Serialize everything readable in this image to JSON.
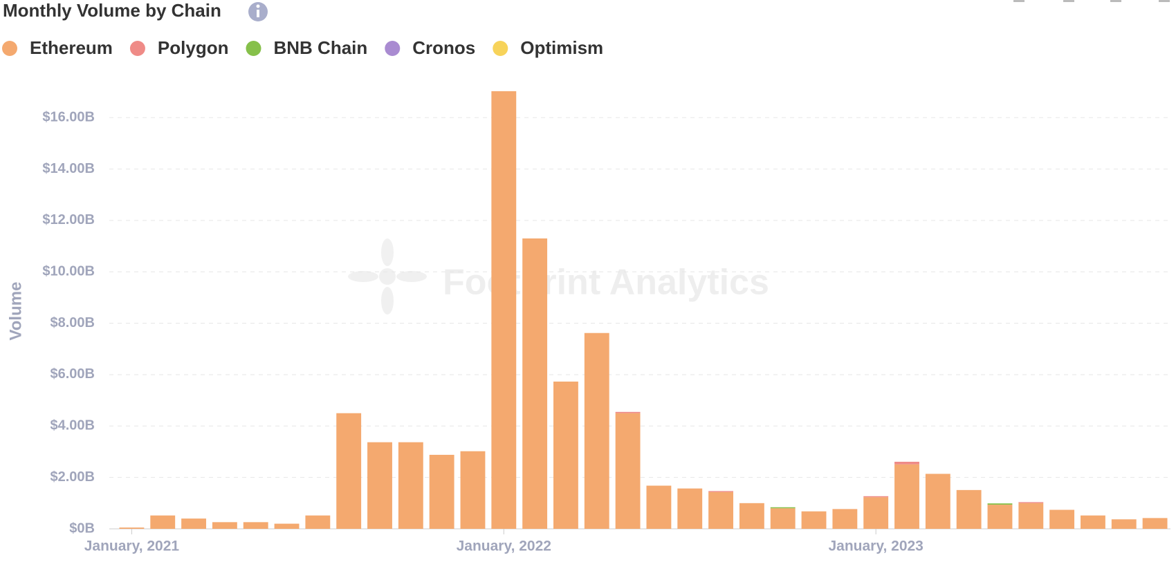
{
  "chart_data": {
    "type": "stacked_bar",
    "title": "Monthly Volume by Chain",
    "watermark": "Footprint Analytics",
    "y_label": "Volume",
    "categories": [
      "January, 2021",
      null,
      null,
      null,
      null,
      null,
      null,
      null,
      null,
      null,
      null,
      null,
      "January, 2022",
      null,
      null,
      null,
      null,
      null,
      null,
      null,
      null,
      null,
      null,
      null,
      "January, 2023",
      null,
      null,
      null,
      null,
      null,
      null,
      null,
      null,
      null
    ],
    "series": [
      {
        "name": "Ethereum",
        "color": "#f4a96f",
        "values": [
          0.05,
          0.52,
          0.4,
          0.26,
          0.26,
          0.2,
          0.52,
          4.5,
          3.37,
          3.37,
          2.88,
          3.02,
          17.03,
          11.3,
          5.73,
          7.62,
          4.5,
          1.68,
          1.57,
          1.43,
          1.0,
          0.8,
          0.68,
          0.77,
          1.23,
          2.51,
          2.14,
          1.51,
          0.94,
          1.0,
          0.74,
          0.52,
          0.37,
          0.42
        ]
      },
      {
        "name": "Polygon",
        "color": "#ef8b87",
        "values": [
          0,
          0,
          0,
          0,
          0,
          0,
          0,
          0,
          0,
          0,
          0,
          0,
          0,
          0,
          0,
          0,
          0.05,
          0,
          0,
          0.04,
          0,
          0,
          0,
          0,
          0.04,
          0.1,
          0,
          0,
          0,
          0.04,
          0,
          0,
          0,
          0
        ]
      },
      {
        "name": "BNB Chain",
        "color": "#86c04a",
        "values": [
          0,
          0,
          0,
          0,
          0,
          0,
          0,
          0,
          0,
          0,
          0,
          0,
          0,
          0,
          0,
          0,
          0,
          0,
          0,
          0,
          0,
          0.04,
          0,
          0,
          0,
          0,
          0,
          0,
          0.05,
          0,
          0,
          0,
          0,
          0
        ]
      },
      {
        "name": "Cronos",
        "color": "#a98bd1",
        "values": [
          0,
          0,
          0,
          0,
          0,
          0,
          0,
          0,
          0,
          0,
          0,
          0,
          0,
          0,
          0,
          0,
          0,
          0,
          0,
          0,
          0,
          0,
          0,
          0,
          0,
          0,
          0,
          0,
          0,
          0,
          0,
          0,
          0,
          0
        ]
      },
      {
        "name": "Optimism",
        "color": "#f7d35a",
        "values": [
          0,
          0,
          0,
          0,
          0,
          0,
          0,
          0,
          0,
          0,
          0,
          0,
          0,
          0,
          0,
          0,
          0,
          0,
          0,
          0,
          0,
          0,
          0,
          0,
          0,
          0,
          0,
          0,
          0,
          0,
          0,
          0,
          0,
          0
        ]
      }
    ],
    "ylim": [
      0,
      17
    ],
    "yticks": [
      {
        "value": 0,
        "label": "$0B"
      },
      {
        "value": 2,
        "label": "$2.00B"
      },
      {
        "value": 4,
        "label": "$4.00B"
      },
      {
        "value": 6,
        "label": "$6.00B"
      },
      {
        "value": 8,
        "label": "$8.00B"
      },
      {
        "value": 10,
        "label": "$10.00B"
      },
      {
        "value": 12,
        "label": "$12.00B"
      },
      {
        "value": 14,
        "label": "$14.00B"
      },
      {
        "value": 16,
        "label": "$16.00B"
      }
    ],
    "grid": true,
    "legend": "top-left"
  }
}
